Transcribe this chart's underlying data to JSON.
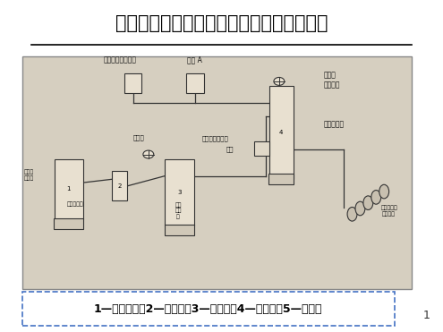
{
  "title": "二步法中、高分子量环氧树脂制造工艺流程",
  "bg_color": "#ffffff",
  "diagram_bg": "#d6cfc0",
  "title_fontsize": 15,
  "title_color": "#000000",
  "footer_text": "1—溶液贮罐；2—过滤器；3—溶解槽；4—反应釜；5—薄片器",
  "footer_border_color": "#4472c4",
  "footer_fontsize": 9,
  "page_number": "1"
}
